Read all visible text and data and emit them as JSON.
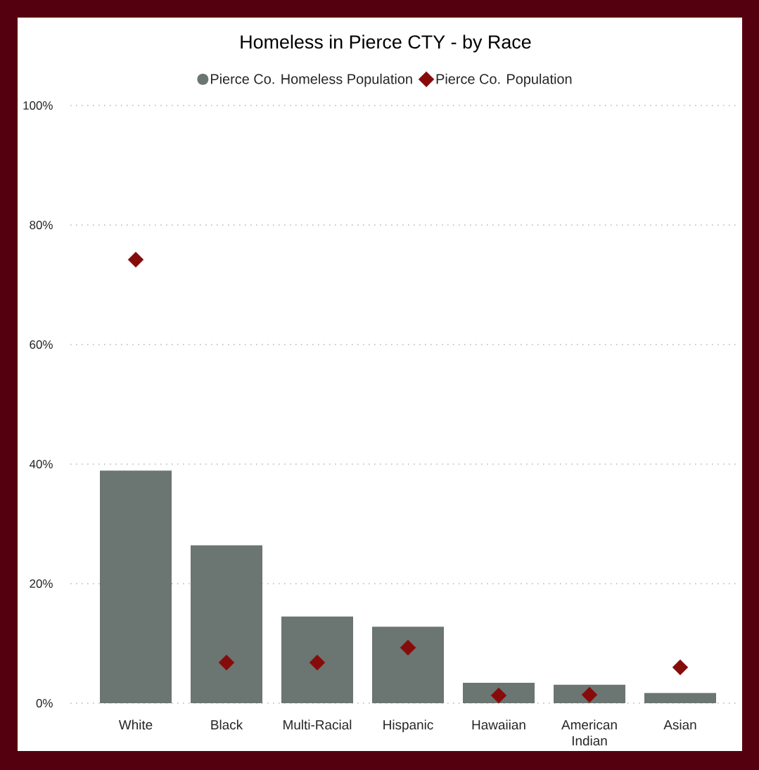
{
  "chart_data": {
    "type": "bar",
    "title": "Homeless in Pierce CTY - by Race",
    "categories": [
      "White",
      "Black",
      "Multi-Racial",
      "Hispanic",
      "Hawaiian",
      "American Indian",
      "Asian"
    ],
    "series": [
      {
        "name": "Pierce Co. Homeless Population",
        "color": "#6b7571",
        "values": [
          38.9,
          26.4,
          14.5,
          12.8,
          3.4,
          3.1,
          1.7
        ]
      },
      {
        "name": "Pierce Co. Population",
        "type": "scatter",
        "marker": "diamond",
        "color": "#860c0c",
        "values": [
          74.2,
          6.8,
          6.8,
          9.3,
          1.3,
          1.4,
          6.0
        ]
      }
    ],
    "ylim": [
      0,
      100
    ],
    "yticks": [
      {
        "value": 0,
        "label": "0%"
      },
      {
        "value": 20,
        "label": "20%"
      },
      {
        "value": 40,
        "label": "40%"
      },
      {
        "value": 60,
        "label": "60%"
      },
      {
        "value": 80,
        "label": "80%"
      },
      {
        "value": 100,
        "label": "100%"
      }
    ],
    "grid": "y",
    "legend": "top"
  }
}
